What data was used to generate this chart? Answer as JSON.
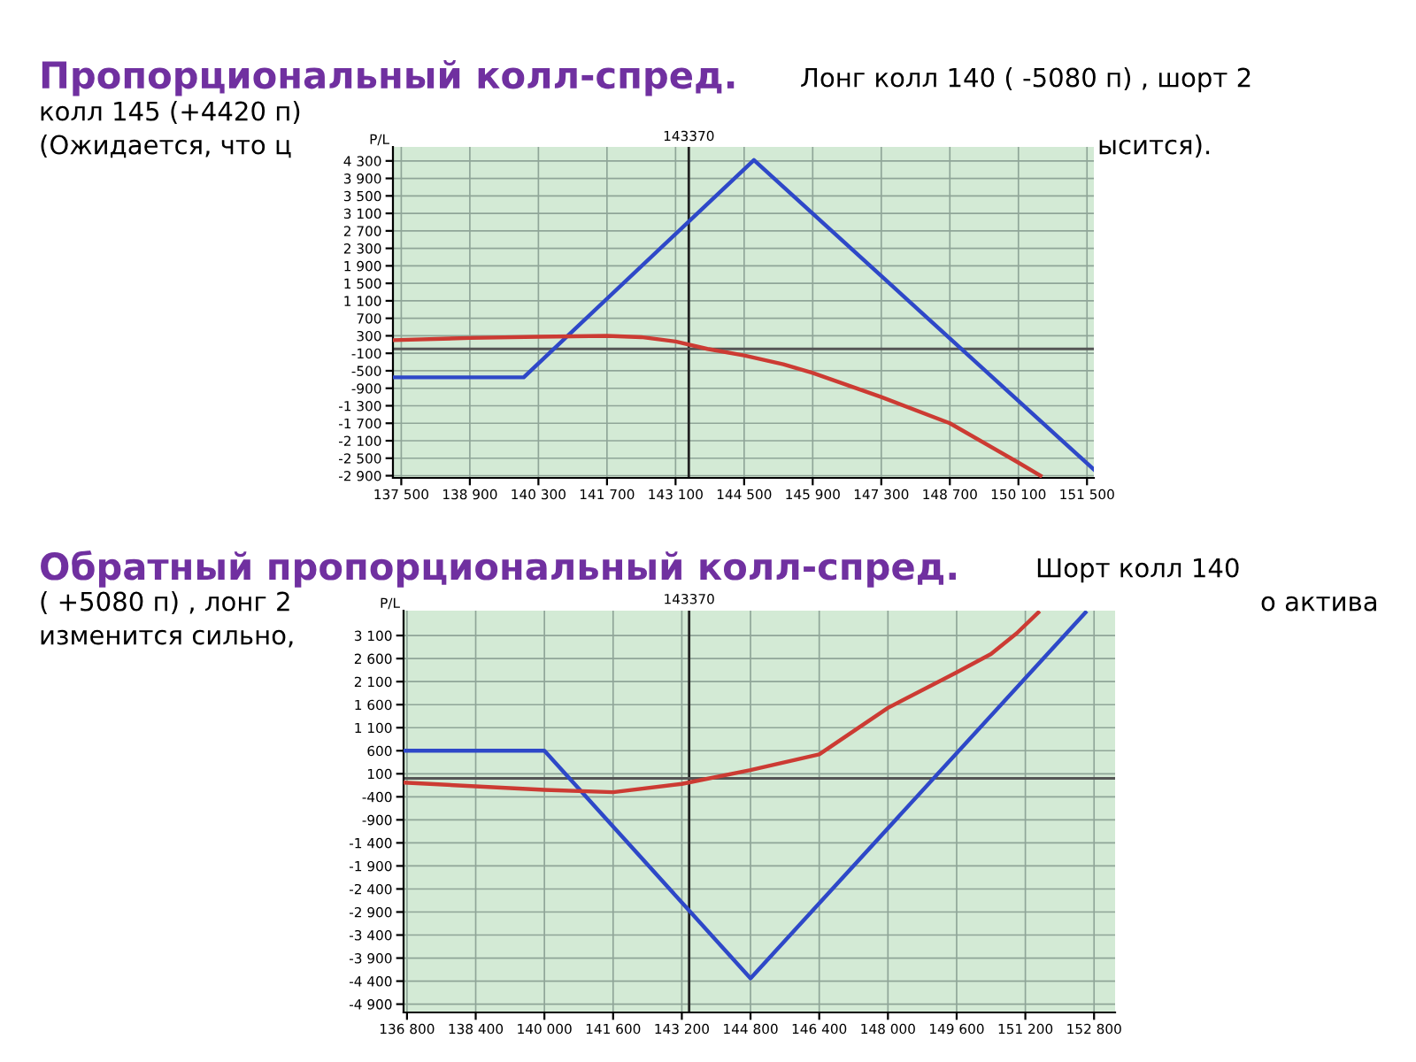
{
  "chart_data": [
    {
      "type": "line",
      "title": "Пропорциональный колл-спред.",
      "subtitle": "Лонг колл 140 ( -5080 п) , шорт 2",
      "annotations": [
        "колл 145 (+4420 п)",
        "(Ожидается, что ц",
        "ысится)."
      ],
      "ylabel": "P/L",
      "xlim": [
        137330,
        151640
      ],
      "ylim": [
        -2950,
        4620
      ],
      "xticks": [
        {
          "value": 137500,
          "label": "137 500"
        },
        {
          "value": 138900,
          "label": "138 900"
        },
        {
          "value": 140300,
          "label": "140 300"
        },
        {
          "value": 141700,
          "label": "141 700"
        },
        {
          "value": 143100,
          "label": "143 100"
        },
        {
          "value": 144500,
          "label": "144 500"
        },
        {
          "value": 145900,
          "label": "145 900"
        },
        {
          "value": 147300,
          "label": "147 300"
        },
        {
          "value": 148700,
          "label": "148 700"
        },
        {
          "value": 150100,
          "label": "150 100"
        },
        {
          "value": 151500,
          "label": "151 500"
        }
      ],
      "yticks": [
        {
          "value": 4300,
          "label": "4 300"
        },
        {
          "value": 3900,
          "label": "3 900"
        },
        {
          "value": 3500,
          "label": "3 500"
        },
        {
          "value": 3100,
          "label": "3 100"
        },
        {
          "value": 2700,
          "label": "2 700"
        },
        {
          "value": 2300,
          "label": "2 300"
        },
        {
          "value": 1900,
          "label": "1 900"
        },
        {
          "value": 1500,
          "label": "1 500"
        },
        {
          "value": 1100,
          "label": "1 100"
        },
        700,
        300,
        -100,
        -500,
        -900,
        {
          "value": -1300,
          "label": "-1 300"
        },
        {
          "value": -1700,
          "label": "-1 700"
        },
        {
          "value": -2100,
          "label": "-2 100"
        },
        {
          "value": -2500,
          "label": "-2 500"
        },
        {
          "value": -2900,
          "label": "-2 900"
        }
      ],
      "grid": true,
      "ref_lines": [
        {
          "axis": "x",
          "value": 143370,
          "label": "143370",
          "color": "#222222"
        },
        {
          "axis": "y",
          "value": 0,
          "label": null,
          "color": "#555555"
        }
      ],
      "series": [
        {
          "color": "#2e48c8",
          "x": [
            137330,
            140000,
            144700,
            151640
          ],
          "values": [
            -650,
            -650,
            4320,
            -2760
          ]
        },
        {
          "color": "#cc3b33",
          "x": [
            137330,
            138900,
            140300,
            141700,
            142400,
            143100,
            143750,
            144500,
            145300,
            145900,
            147300,
            148700,
            150100,
            150550
          ],
          "values": [
            200,
            250,
            280,
            300,
            270,
            170,
            0,
            -150,
            -350,
            -550,
            -1100,
            -1700,
            -2600,
            -2900
          ]
        }
      ]
    },
    {
      "type": "line",
      "title": "Обратный пропорциональный колл-спред.",
      "subtitle": "Шорт колл 140",
      "annotations": [
        "( +5080 п) , лонг 2",
        "о актива",
        "изменится сильно,"
      ],
      "ylabel": "P/L",
      "xlim": [
        136720,
        153290
      ],
      "ylim": [
        -5080,
        3640
      ],
      "xticks": [
        {
          "value": 136800,
          "label": "136 800"
        },
        {
          "value": 138400,
          "label": "138 400"
        },
        {
          "value": 140000,
          "label": "140 000"
        },
        {
          "value": 141600,
          "label": "141 600"
        },
        {
          "value": 143200,
          "label": "143 200"
        },
        {
          "value": 144800,
          "label": "144 800"
        },
        {
          "value": 146400,
          "label": "146 400"
        },
        {
          "value": 148000,
          "label": "148 000"
        },
        {
          "value": 149600,
          "label": "149 600"
        },
        {
          "value": 151200,
          "label": "151 200"
        },
        {
          "value": 152800,
          "label": "152 800"
        }
      ],
      "yticks": [
        {
          "value": 3100,
          "label": "3 100"
        },
        {
          "value": 2600,
          "label": "2 600"
        },
        {
          "value": 2100,
          "label": "2 100"
        },
        {
          "value": 1600,
          "label": "1 600"
        },
        {
          "value": 1100,
          "label": "1 100"
        },
        600,
        100,
        -400,
        -900,
        {
          "value": -1400,
          "label": "-1 400"
        },
        {
          "value": -1900,
          "label": "-1 900"
        },
        {
          "value": -2400,
          "label": "-2 400"
        },
        {
          "value": -2900,
          "label": "-2 900"
        },
        {
          "value": -3400,
          "label": "-3 400"
        },
        {
          "value": -3900,
          "label": "-3 900"
        },
        {
          "value": -4400,
          "label": "-4 400"
        },
        {
          "value": -4900,
          "label": "-4 900"
        }
      ],
      "grid": true,
      "ref_lines": [
        {
          "axis": "x",
          "value": 143370,
          "label": "143370",
          "color": "#222222"
        },
        {
          "axis": "y",
          "value": 0,
          "label": null,
          "color": "#555555"
        }
      ],
      "series": [
        {
          "color": "#2e48c8",
          "x": [
            136720,
            140000,
            144800,
            152600
          ],
          "values": [
            600,
            600,
            -4340,
            3600
          ]
        },
        {
          "color": "#cc3b33",
          "x": [
            136720,
            140000,
            141600,
            143200,
            144800,
            146400,
            148000,
            149600,
            150400,
            151000,
            151500
          ],
          "values": [
            -90,
            -250,
            -300,
            -120,
            180,
            520,
            1530,
            2300,
            2700,
            3150,
            3600
          ]
        }
      ]
    }
  ]
}
